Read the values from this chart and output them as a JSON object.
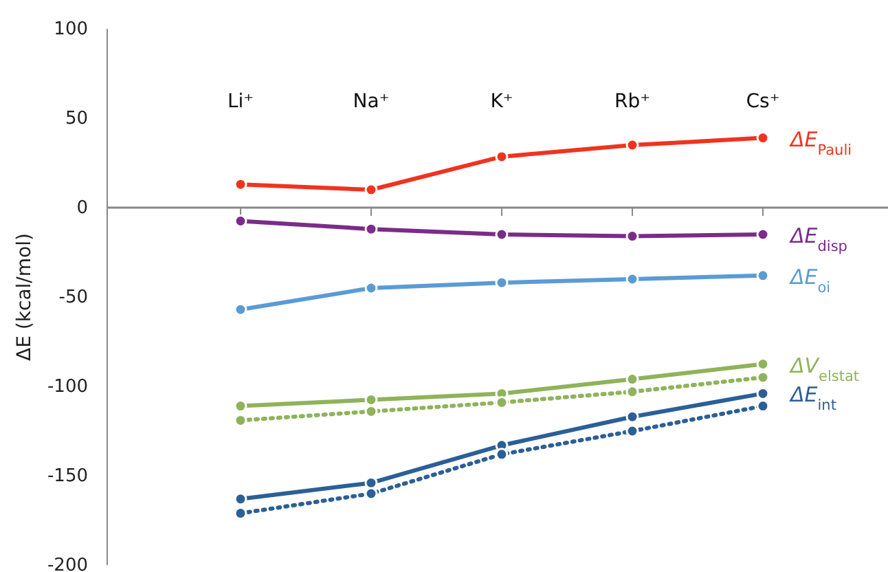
{
  "chart_data": {
    "type": "line",
    "ylabel": "ΔE (kcal/mol)",
    "categories": [
      "Li⁺",
      "Na⁺",
      "K⁺",
      "Rb⁺",
      "Cs⁺"
    ],
    "ylim": [
      -200,
      100
    ],
    "yticks": [
      -200,
      -150,
      -100,
      -50,
      0,
      50,
      100
    ],
    "marker": "circle",
    "series": [
      {
        "name": "ΔE$_{Pauli}$",
        "color": "#f0331f",
        "line_style": "solid",
        "values": [
          13,
          10,
          28.5,
          35,
          39
        ]
      },
      {
        "name": "ΔE$_{disp}$",
        "color": "#7b2b8a",
        "line_style": "solid",
        "values": [
          -7.5,
          -12,
          -15,
          -16,
          -15
        ]
      },
      {
        "name": "ΔE$_{oi}$",
        "color": "#5b9bd5",
        "line_style": "solid",
        "values": [
          -57,
          -45,
          -42,
          -40,
          -38
        ]
      },
      {
        "name": "ΔV$_{elstat}$",
        "color": "#8fb35a",
        "line_style": "solid",
        "values": [
          -111,
          -107.5,
          -104,
          -96,
          -87.5
        ]
      },
      {
        "color": "#8fb35a",
        "line_style": "dotted",
        "values": [
          -119,
          -114,
          -109,
          -103,
          -95
        ]
      },
      {
        "name": "ΔE$_{int}$",
        "color": "#2b5f97",
        "line_style": "solid",
        "values": [
          -163,
          -154,
          -133,
          -117,
          -104
        ]
      },
      {
        "color": "#2b5f97",
        "line_style": "dotted",
        "values": [
          -171,
          -160,
          -138,
          -125,
          -111
        ]
      }
    ]
  }
}
